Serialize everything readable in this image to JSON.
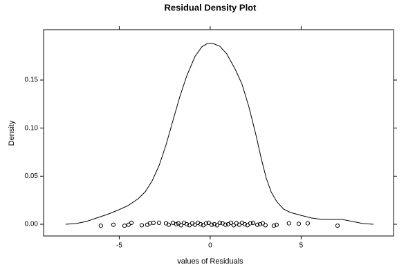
{
  "chart_data": {
    "type": "density",
    "title": "Residual Density Plot",
    "xlabel": "values of Residuals",
    "ylabel": "Density",
    "color": "#000000",
    "x": [
      -7.95,
      -7.38,
      -6.81,
      -6.24,
      -5.67,
      -5.1,
      -4.52,
      -3.95,
      -3.57,
      -3.19,
      -2.81,
      -2.43,
      -2.05,
      -1.67,
      -1.29,
      -0.84,
      -0.46,
      -0.15,
      0.15,
      0.53,
      0.91,
      1.37,
      1.75,
      2.13,
      2.51,
      2.81,
      3.08,
      3.35,
      3.65,
      4.03,
      4.41,
      4.98,
      5.55,
      6.12,
      6.69,
      7.26,
      7.83,
      8.4,
      8.97
    ],
    "values": [
      0,
      0.0007,
      0.0029,
      0.0065,
      0.0101,
      0.0144,
      0.0194,
      0.0266,
      0.0337,
      0.0452,
      0.061,
      0.0825,
      0.1077,
      0.1328,
      0.1543,
      0.1744,
      0.1845,
      0.1881,
      0.1881,
      0.1852,
      0.1773,
      0.1615,
      0.1457,
      0.122,
      0.0933,
      0.0682,
      0.0481,
      0.0337,
      0.0237,
      0.0158,
      0.0122,
      0.0093,
      0.0065,
      0.005,
      0.005,
      0.005,
      0.0029,
      0.0007,
      0
    ],
    "points": {
      "x": [
        -6.01,
        -5.32,
        -4.71,
        -4.49,
        -4.33,
        -3.76,
        -3.46,
        -3.31,
        -3.12,
        -2.81,
        -2.43,
        -2.28,
        -2.05,
        -1.86,
        -1.75,
        -1.6,
        -1.44,
        -1.29,
        -1.14,
        -0.99,
        -0.84,
        -0.68,
        -0.53,
        -0.38,
        -0.23,
        -0.08,
        0.08,
        0.23,
        0.38,
        0.53,
        0.68,
        0.84,
        0.99,
        1.14,
        1.29,
        1.44,
        1.6,
        1.75,
        1.9,
        2.05,
        2.21,
        2.36,
        2.59,
        2.74,
        2.89,
        3.04,
        3.5,
        3.65,
        4.33,
        4.87,
        5.36,
        7.0
      ],
      "y": [
        -0.0015,
        -0.0005,
        -0.0015,
        -0.0005,
        0.0015,
        -0.001,
        -0.0005,
        0.001,
        0.0015,
        0.0015,
        0.001,
        -0.0005,
        0.0015,
        0.0,
        0.001,
        -0.001,
        0.0015,
        0.0,
        -0.001,
        0.001,
        -0.0005,
        0.0015,
        0.0,
        -0.001,
        0.001,
        0.0015,
        -0.0005,
        0.0,
        -0.001,
        0.0015,
        0.001,
        -0.0005,
        0.0,
        0.0015,
        -0.001,
        0.001,
        -0.0005,
        0.0015,
        0.0,
        -0.001,
        0.001,
        0.0015,
        -0.0005,
        0.0,
        0.001,
        -0.001,
        -0.0015,
        -0.0005,
        0.001,
        0.0005,
        0.001,
        -0.0015
      ]
    },
    "xlim": [
      -9.16,
      10.08
    ],
    "ylim": [
      -0.0122,
      0.2024
    ],
    "xticks": [
      -5,
      0,
      5
    ],
    "yticks": [
      {
        "value": 0,
        "label": "0.00"
      },
      0.05,
      {
        "value": 0.1,
        "label": "0.10"
      },
      0.15
    ]
  }
}
